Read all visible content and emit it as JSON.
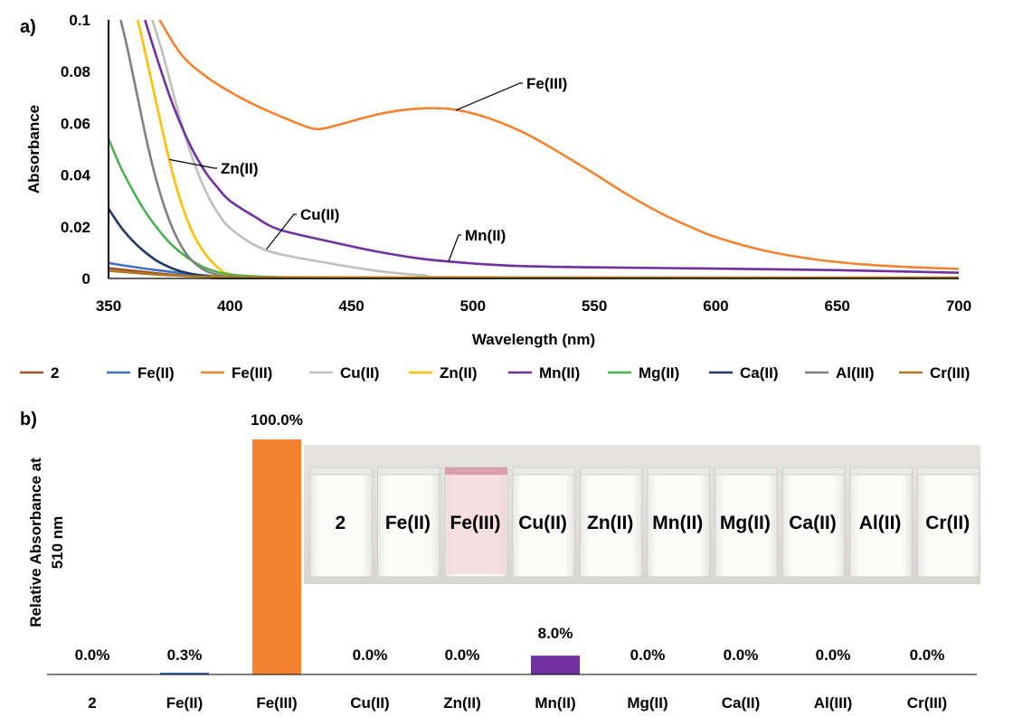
{
  "chart_data": [
    {
      "panel": "a)",
      "type": "line",
      "xlabel": "Wavelength (nm)",
      "ylabel": "Absorbance",
      "xlim": [
        350,
        700
      ],
      "ylim": [
        0,
        0.1
      ],
      "xticks": [
        "350",
        "400",
        "450",
        "500",
        "550",
        "600",
        "650",
        "700"
      ],
      "yticks": [
        "0",
        "0.02",
        "0.04",
        "0.06",
        "0.08",
        "0.1"
      ],
      "grid": false,
      "legend_position": "bottom",
      "series": [
        {
          "name": "2",
          "color": "#A0522D",
          "x": [
            350,
            360,
            370,
            380,
            400,
            450,
            700
          ],
          "y": [
            0.004,
            0.003,
            0.002,
            0.0012,
            0.0005,
            0.0002,
            0.0001
          ]
        },
        {
          "name": "Fe(II)",
          "color": "#4472C4",
          "x": [
            350,
            360,
            370,
            380,
            390,
            400,
            450,
            700
          ],
          "y": [
            0.006,
            0.0045,
            0.0032,
            0.0021,
            0.0012,
            0.0006,
            0.0002,
            0.0001
          ]
        },
        {
          "name": "Fe(III)",
          "color": "#F58230",
          "x": [
            371,
            380,
            390,
            400,
            410,
            420,
            430,
            435,
            440,
            450,
            460,
            470,
            480,
            490,
            500,
            510,
            520,
            530,
            540,
            550,
            560,
            570,
            580,
            590,
            600,
            620,
            640,
            660,
            680,
            700
          ],
          "y": [
            0.1,
            0.0865,
            0.0782,
            0.0722,
            0.0672,
            0.063,
            0.0592,
            0.0578,
            0.0583,
            0.0608,
            0.0633,
            0.065,
            0.0658,
            0.0656,
            0.0638,
            0.0608,
            0.0568,
            0.0518,
            0.0462,
            0.0405,
            0.0345,
            0.029,
            0.024,
            0.0198,
            0.016,
            0.0108,
            0.0075,
            0.0055,
            0.0044,
            0.0037
          ]
        },
        {
          "name": "Cu(II)",
          "color": "#BFBFBF",
          "x": [
            368,
            372,
            376,
            380,
            384,
            388,
            392,
            396,
            400,
            410,
            420,
            440,
            460,
            480,
            500,
            700
          ],
          "y": [
            0.1,
            0.088,
            0.074,
            0.06,
            0.048,
            0.038,
            0.03,
            0.024,
            0.0195,
            0.013,
            0.0095,
            0.006,
            0.003,
            0.0012,
            0.0005,
            0.0003
          ]
        },
        {
          "name": "Zn(II)",
          "color": "#FFC000",
          "x": [
            362,
            364,
            368,
            372,
            376,
            380,
            384,
            388,
            392,
            396,
            400,
            420,
            700
          ],
          "y": [
            0.1,
            0.092,
            0.075,
            0.058,
            0.042,
            0.029,
            0.019,
            0.012,
            0.007,
            0.0035,
            0.0018,
            0.0005,
            0.0002
          ]
        },
        {
          "name": "Mn(II)",
          "color": "#7030A0",
          "x": [
            365,
            370,
            375,
            380,
            385,
            390,
            395,
            400,
            410,
            420,
            440,
            460,
            480,
            500,
            520,
            550,
            600,
            650,
            700
          ],
          "y": [
            0.1,
            0.085,
            0.071,
            0.059,
            0.049,
            0.041,
            0.035,
            0.03,
            0.024,
            0.019,
            0.0145,
            0.0105,
            0.0075,
            0.0058,
            0.0048,
            0.0043,
            0.0038,
            0.0032,
            0.0022
          ]
        },
        {
          "name": "Mg(II)",
          "color": "#4CAF50",
          "x": [
            350,
            355,
            360,
            365,
            370,
            375,
            380,
            385,
            390,
            400,
            420,
            450,
            700
          ],
          "y": [
            0.054,
            0.043,
            0.034,
            0.026,
            0.0195,
            0.014,
            0.0098,
            0.0065,
            0.004,
            0.0015,
            0.0005,
            0.0002,
            0.0001
          ]
        },
        {
          "name": "Ca(II)",
          "color": "#1F3864",
          "x": [
            350,
            355,
            360,
            365,
            370,
            375,
            380,
            385,
            390,
            400,
            420,
            700
          ],
          "y": [
            0.027,
            0.02,
            0.0145,
            0.0102,
            0.0068,
            0.0044,
            0.0027,
            0.0016,
            0.0009,
            0.0003,
            0.0001,
            0.0001
          ]
        },
        {
          "name": "Al(III)",
          "color": "#808080",
          "x": [
            355,
            358,
            362,
            366,
            370,
            374,
            378,
            382,
            386,
            390,
            395,
            400,
            420,
            700
          ],
          "y": [
            0.1,
            0.088,
            0.07,
            0.052,
            0.037,
            0.025,
            0.016,
            0.0095,
            0.0055,
            0.003,
            0.0014,
            0.0006,
            0.0002,
            0.0001
          ]
        },
        {
          "name": "Cr(III)",
          "color": "#B07820",
          "x": [
            350,
            360,
            370,
            380,
            400,
            450,
            700
          ],
          "y": [
            0.003,
            0.0022,
            0.0015,
            0.001,
            0.0005,
            0.0003,
            0.0003
          ]
        }
      ],
      "annotations": [
        {
          "text": "Fe(III)",
          "series": "Fe(III)",
          "at_x": 493
        },
        {
          "text": "Zn(II)",
          "series": "Zn(II)",
          "at_x": 375
        },
        {
          "text": "Cu(II)",
          "series": "Cu(II)",
          "at_x": 415
        },
        {
          "text": "Mn(II)",
          "series": "Mn(II)",
          "at_x": 490
        }
      ]
    },
    {
      "panel": "b)",
      "type": "bar",
      "ylabel": "Relative Absorbance at 510 nm",
      "ylabel_lines": [
        "Relative Absorbance at",
        "510 nm"
      ],
      "ylim": [
        0,
        100
      ],
      "categories": [
        "2",
        "Fe(II)",
        "Fe(III)",
        "Cu(II)",
        "Zn(II)",
        "Mn(II)",
        "Mg(II)",
        "Ca(II)",
        "Al(III)",
        "Cr(III)"
      ],
      "values": [
        0.0,
        0.3,
        100.0,
        0.0,
        0.0,
        8.0,
        0.0,
        0.0,
        0.0,
        0.0
      ],
      "labels": [
        "0.0%",
        "0.3%",
        "100.0%",
        "0.0%",
        "0.0%",
        "8.0%",
        "0.0%",
        "0.0%",
        "0.0%",
        "0.0%"
      ],
      "colors": [
        "#A0522D",
        "#4472C4",
        "#F58230",
        "#BFBFBF",
        "#FFC000",
        "#7030A0",
        "#4CAF50",
        "#1F3864",
        "#808080",
        "#B07820"
      ],
      "inset_photo": {
        "labels": [
          "2",
          "Fe(II)",
          "Fe(III)",
          "Cu(II)",
          "Zn(II)",
          "Mn(II)",
          "Mg(II)",
          "Ca(II)",
          "Al(II)",
          "Cr(II)"
        ],
        "tinted_vial": "Fe(III)",
        "tint_color": "#F2C9CF"
      }
    }
  ]
}
